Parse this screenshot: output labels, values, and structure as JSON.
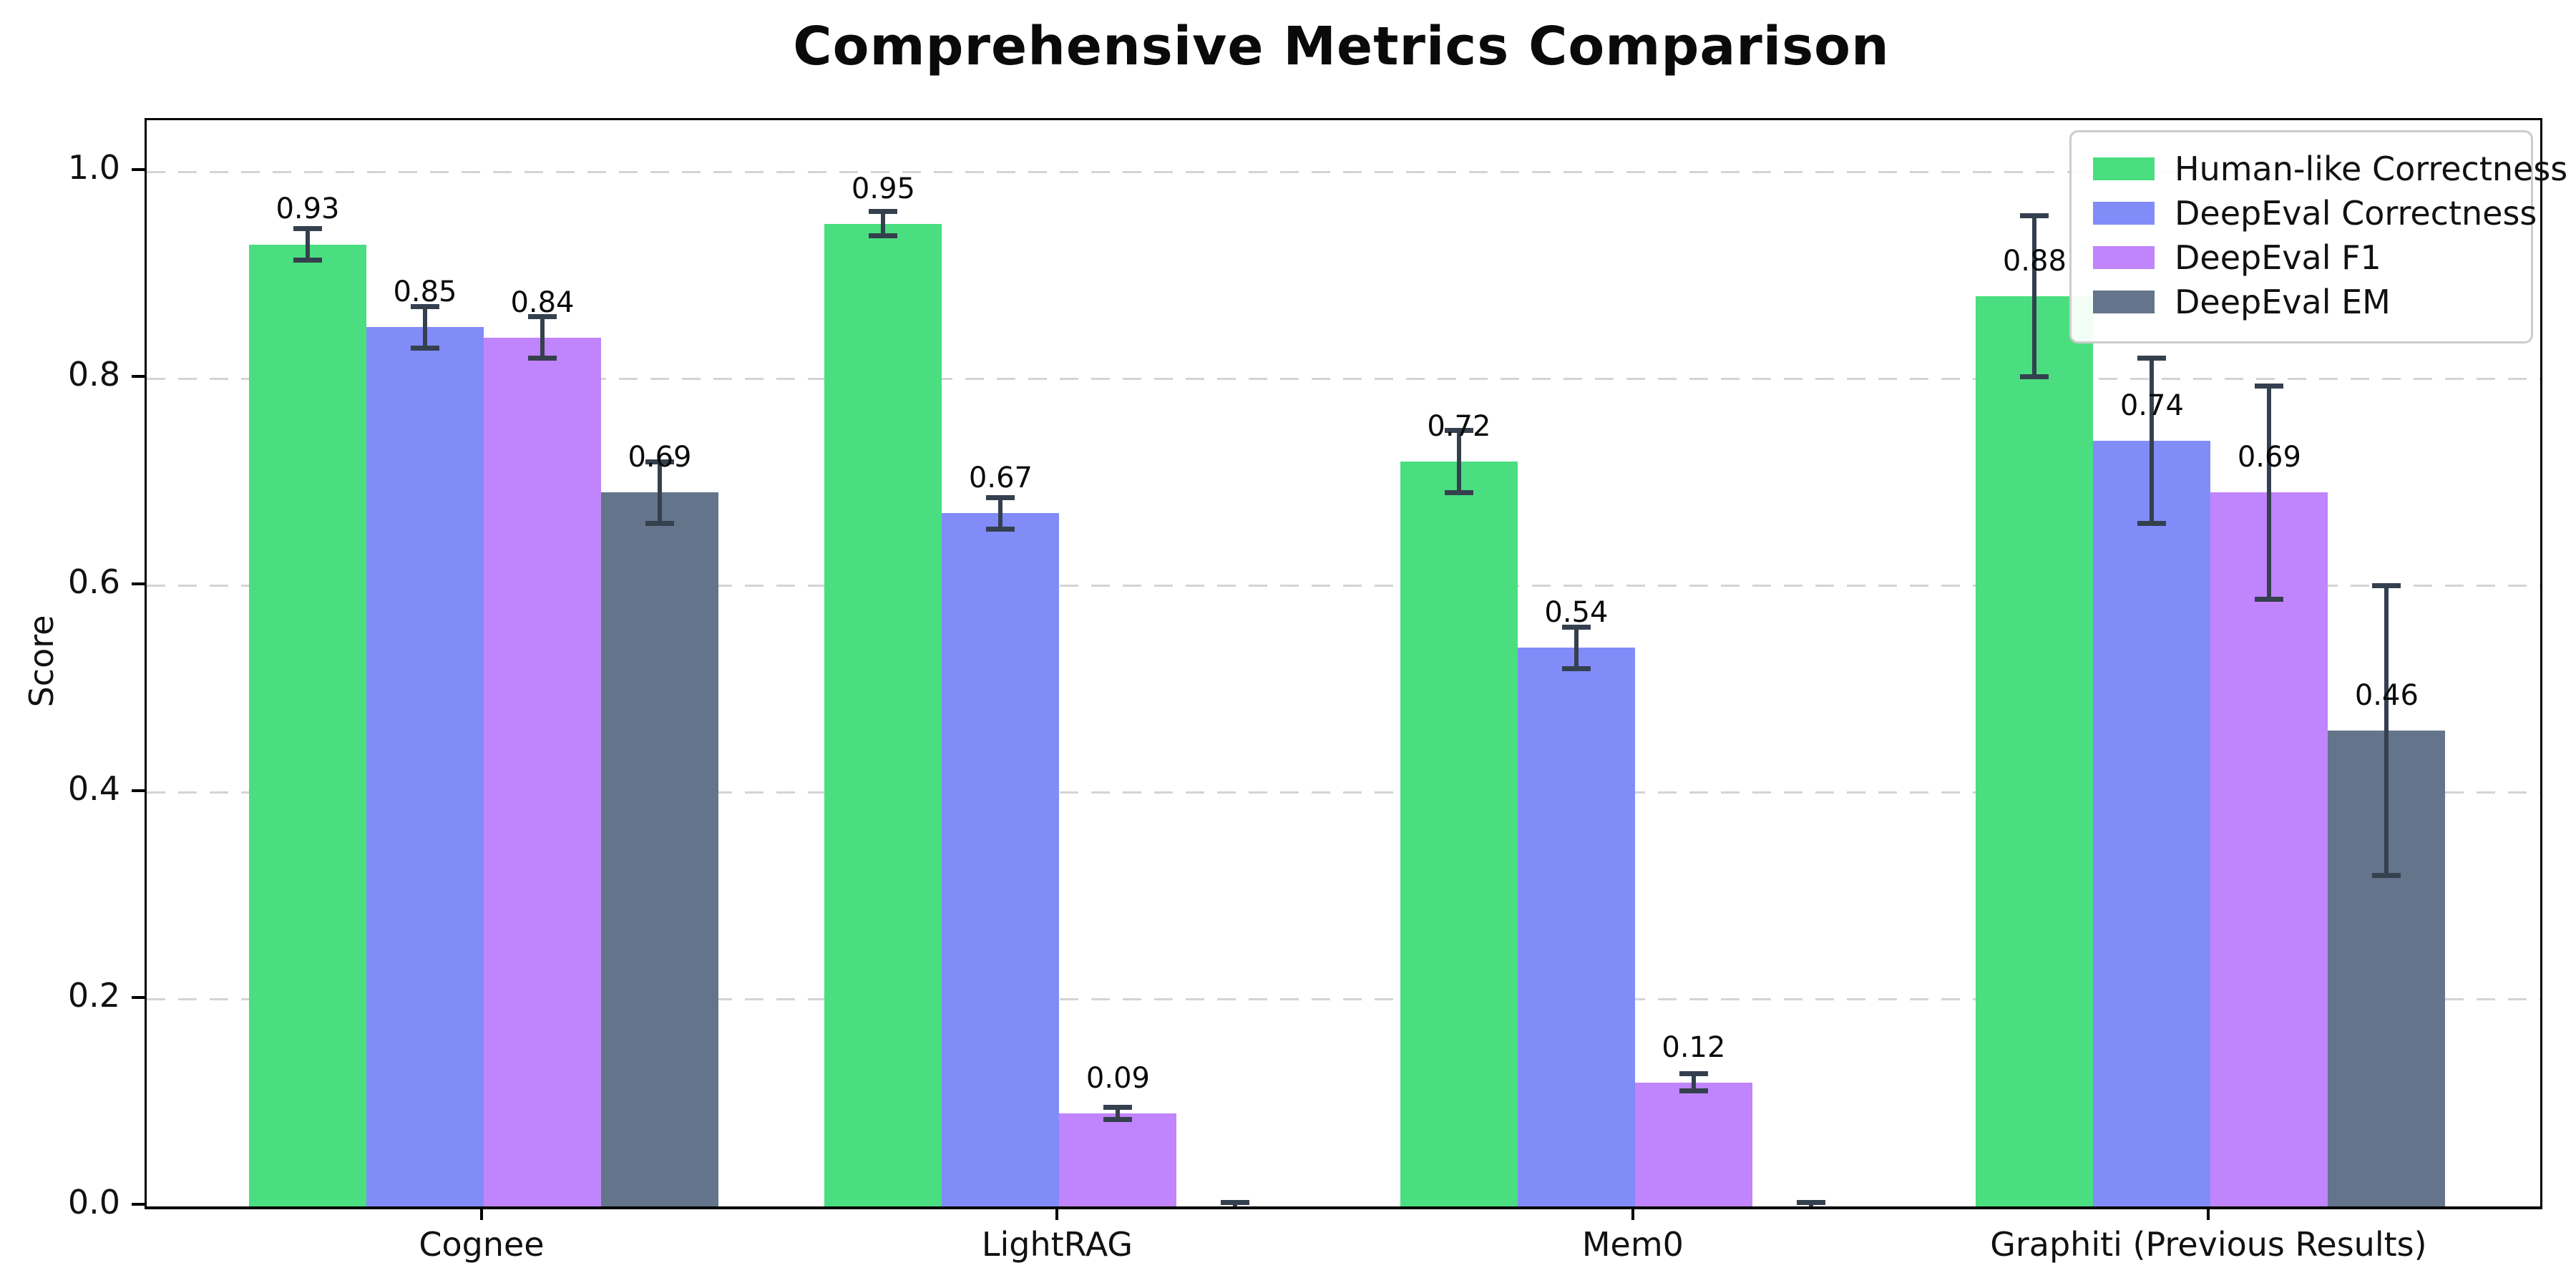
{
  "chart_data": {
    "type": "bar",
    "title": "Comprehensive Metrics Comparison",
    "xlabel": "",
    "ylabel": "Score",
    "ylim": [
      0,
      1.05
    ],
    "yticks": [
      0.0,
      0.2,
      0.4,
      0.6,
      0.8,
      1.0
    ],
    "grid": {
      "axis": "y",
      "style": "dashed",
      "color": "#d4d4d4"
    },
    "legend_position": "upper right",
    "categories": [
      "Cognee",
      "LightRAG",
      "Mem0",
      "Graphiti (Previous Results)"
    ],
    "series": [
      {
        "name": "Human-like Correctness",
        "color": "#4ade80",
        "values": [
          0.93,
          0.95,
          0.72,
          0.88
        ],
        "errors": [
          0.015,
          0.012,
          0.03,
          0.078
        ],
        "labels": [
          "0.93",
          "0.95",
          "0.72",
          "0.88"
        ]
      },
      {
        "name": "DeepEval Correctness",
        "color": "#818cf8",
        "values": [
          0.85,
          0.67,
          0.54,
          0.74
        ],
        "errors": [
          0.02,
          0.015,
          0.02,
          0.08
        ],
        "labels": [
          "0.85",
          "0.67",
          "0.54",
          "0.74"
        ]
      },
      {
        "name": "DeepEval F1",
        "color": "#c084fc",
        "values": [
          0.84,
          0.09,
          0.12,
          0.69
        ],
        "errors": [
          0.02,
          0.006,
          0.008,
          0.103
        ],
        "labels": [
          "0.84",
          "0.09",
          "0.12",
          "0.69"
        ]
      },
      {
        "name": "DeepEval EM",
        "color": "#64748b",
        "values": [
          0.69,
          0.0,
          0.0,
          0.46
        ],
        "errors": [
          0.03,
          0.004,
          0.004,
          0.14
        ],
        "labels": [
          "0.69",
          "",
          "",
          "0.46"
        ]
      }
    ],
    "errorbar_color": "#35404f",
    "axis_color": "#000000"
  }
}
